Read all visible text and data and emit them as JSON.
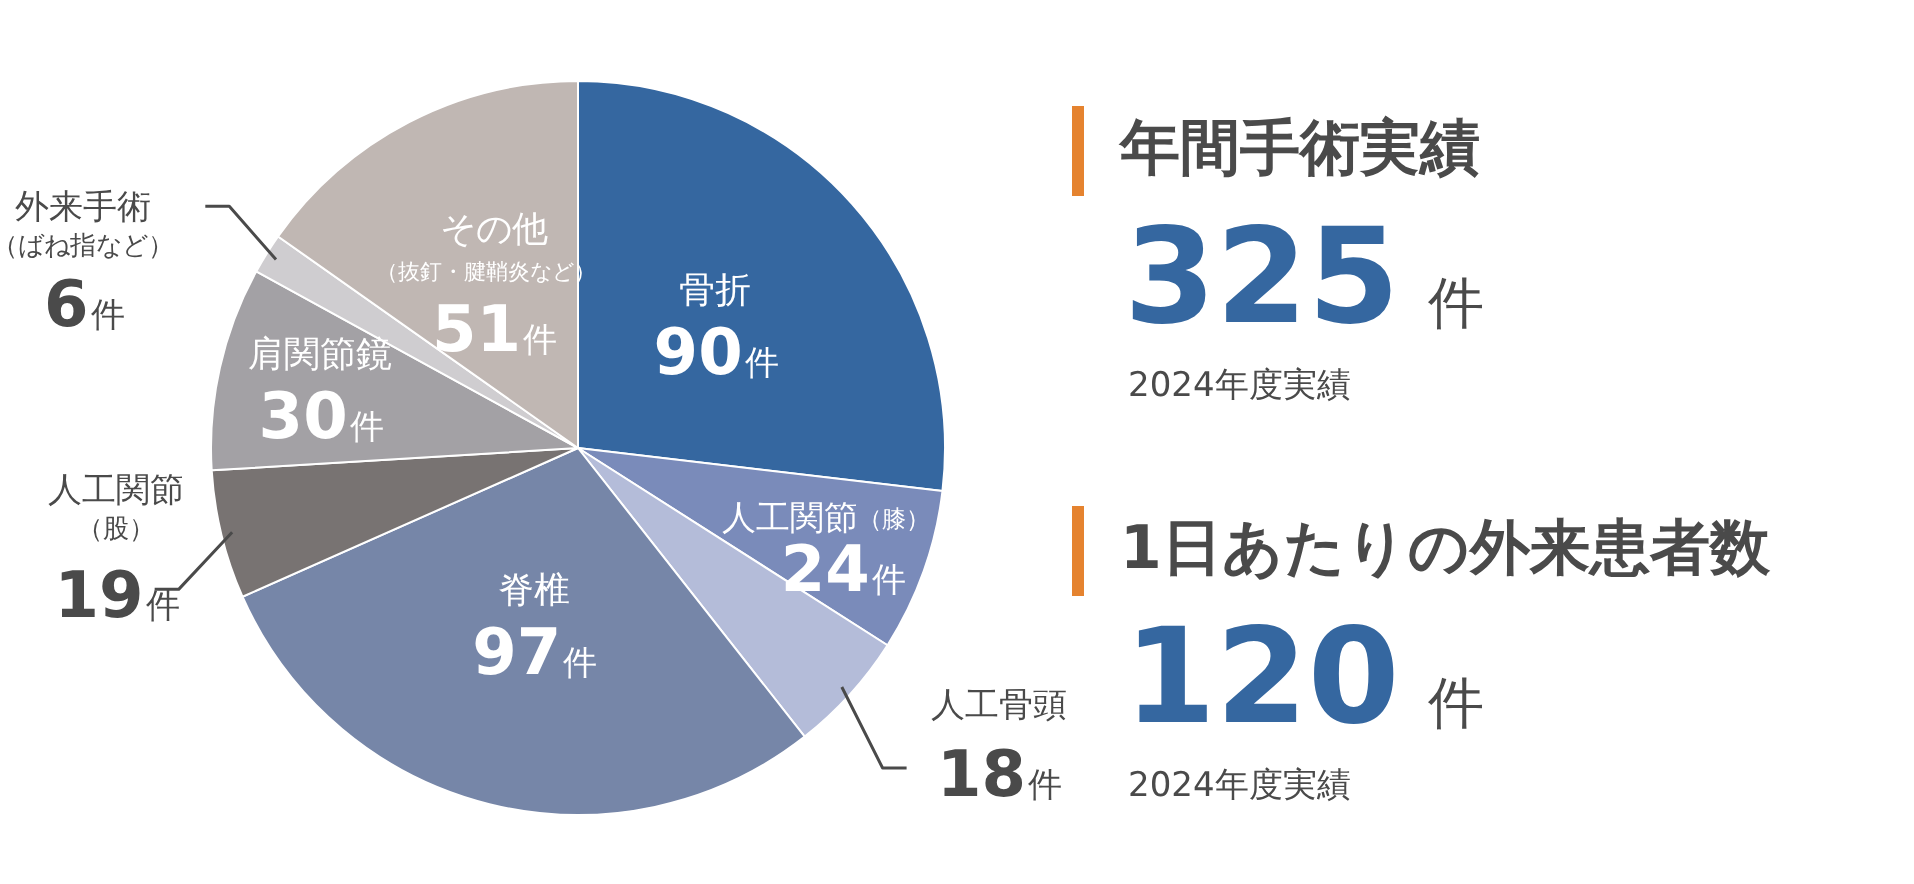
{
  "chart_data": [
    {
      "type": "pie",
      "categories": [
        "骨折",
        "人工関節（膝）",
        "人工骨頭",
        "脊椎",
        "人工関節（股）",
        "肩関節鏡",
        "外来手術（ばね指など）",
        "その他（抜釘・腱鞘炎など）"
      ],
      "values": [
        90,
        24,
        18,
        97,
        19,
        30,
        6,
        51
      ],
      "colors": [
        "#3567a0",
        "#7a8bba",
        "#b4bcd9",
        "#7686a8",
        "#787372",
        "#a3a1a5",
        "#cfcdd0",
        "#c0b7b3"
      ],
      "value_labels": [
        "90件",
        "24件",
        "18件",
        "97件",
        "19件",
        "30件",
        "6件",
        "51件"
      ],
      "legend": false
    },
    {
      "type": "other",
      "annotations": [
        "年間手術実績",
        "325 件",
        "2024年度実績",
        "1日あたりの外来患者数",
        "120 件",
        "2024年度実績"
      ]
    }
  ]
}
